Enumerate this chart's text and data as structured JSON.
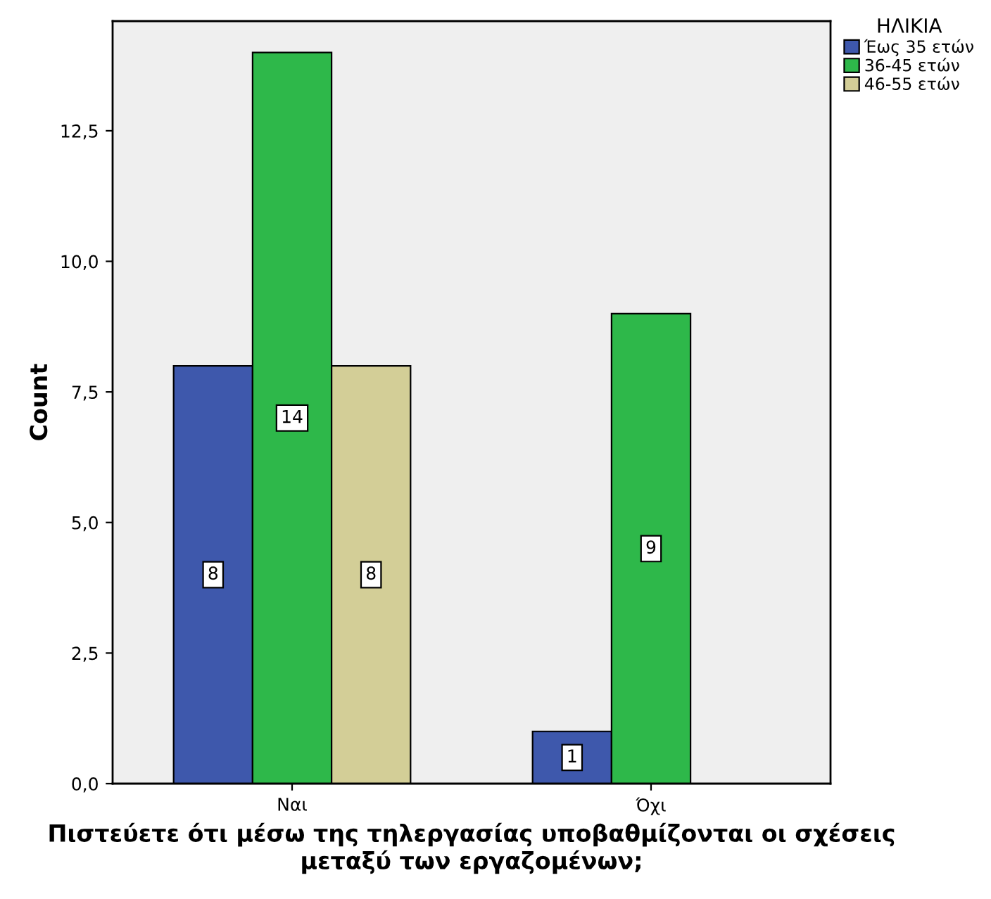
{
  "chart_data": {
    "type": "bar",
    "xlabel": "Πιστεύετε ότι μέσω της τηλεργασίας υποβαθμίζονται οι σχέσεις μεταξύ των εργαζομένων;",
    "ylabel": "Count",
    "legend_title": "ΗΛΙΚΙΑ",
    "legend": "top right",
    "categories": [
      "Ναι",
      "Όχι"
    ],
    "series": [
      {
        "name": "Έως 35 ετών",
        "color": "#3e58ac",
        "values": [
          8,
          1
        ],
        "value_labels": [
          "8",
          "1"
        ]
      },
      {
        "name": "36-45 ετών",
        "color": "#2eb84a",
        "values": [
          14,
          9
        ],
        "value_labels": [
          "14",
          "9"
        ]
      },
      {
        "name": "46-55 ετών",
        "color": "#d3ce97",
        "values": [
          8,
          0
        ],
        "value_labels": [
          "8",
          null
        ]
      }
    ],
    "ylim": [
      0,
      14.6
    ],
    "yticks": [
      {
        "value": 0,
        "label": "0,0"
      },
      {
        "value": 2.5,
        "label": "2,5"
      },
      {
        "value": 5,
        "label": "5,0"
      },
      {
        "value": 7.5,
        "label": "7,5"
      },
      {
        "value": 10,
        "label": "10,0"
      },
      {
        "value": 12.5,
        "label": "12,5"
      }
    ],
    "grid": false
  }
}
